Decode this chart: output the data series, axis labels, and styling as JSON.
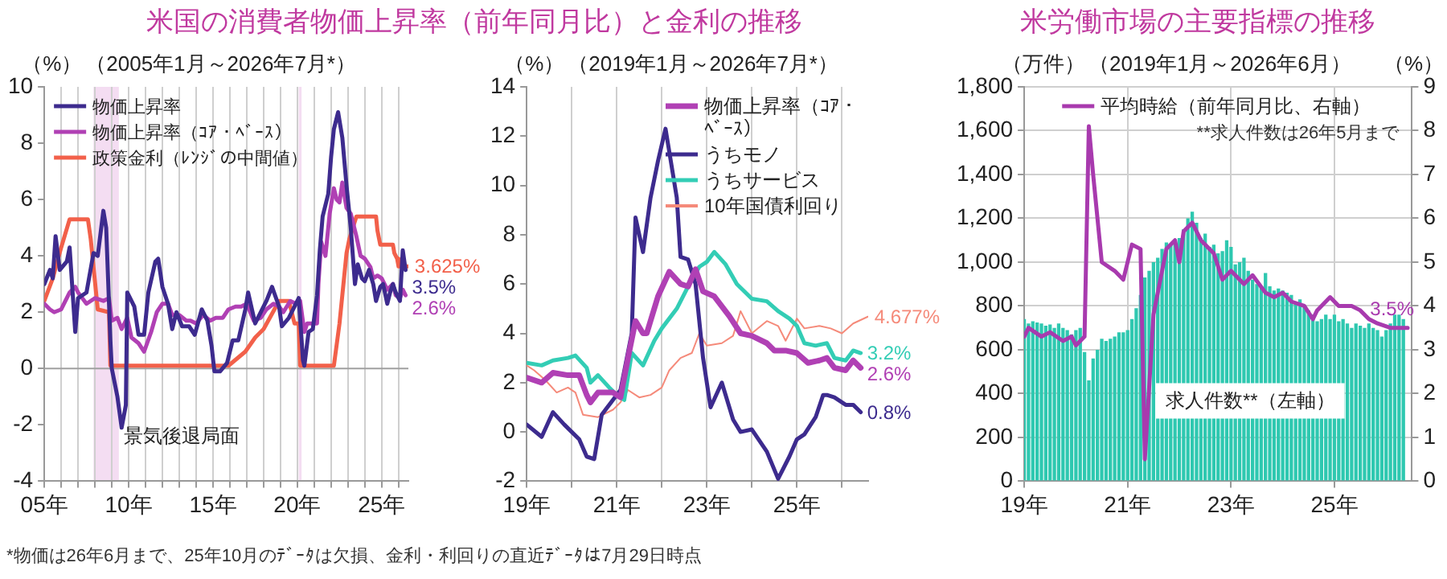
{
  "chart_data": [
    {
      "type": "line",
      "title": "米国の消費者物価上昇率（前年同月比）と金利の推移",
      "subtitle": "（2005年1月～2026年7月*）",
      "ylabel": "（%）",
      "xlim": [
        "2005-01",
        "2026-08"
      ],
      "xticks": [
        {
          "value": "2005",
          "label": "05年"
        },
        {
          "value": "2006",
          "label": null
        },
        {
          "value": "2007",
          "label": null
        },
        {
          "value": "2008",
          "label": null
        },
        {
          "value": "2009",
          "label": null
        },
        {
          "value": "2010",
          "label": "10年"
        },
        {
          "value": "2011",
          "label": null
        },
        {
          "value": "2012",
          "label": null
        },
        {
          "value": "2013",
          "label": null
        },
        {
          "value": "2014",
          "label": null
        },
        {
          "value": "2015",
          "label": "15年"
        },
        {
          "value": "2016",
          "label": null
        },
        {
          "value": "2017",
          "label": null
        },
        {
          "value": "2018",
          "label": null
        },
        {
          "value": "2019",
          "label": null
        },
        {
          "value": "2020",
          "label": "20年"
        },
        {
          "value": "2021",
          "label": null
        },
        {
          "value": "2022",
          "label": null
        },
        {
          "value": "2023",
          "label": null
        },
        {
          "value": "2024",
          "label": null
        },
        {
          "value": "2025",
          "label": "25年"
        },
        {
          "value": "2026",
          "label": null
        }
      ],
      "ylim": [
        -4,
        10
      ],
      "yticks": [
        -4,
        -2,
        0,
        2,
        4,
        6,
        8,
        10
      ],
      "grid": "x",
      "legend": "top left",
      "line_style": "solid",
      "marker": "none",
      "ref_lines": [
        {
          "axis": "y",
          "value": 0,
          "color": "#a0a0a0"
        }
      ],
      "bands": [
        {
          "axis": "x",
          "from": "2007-12",
          "to": "2009-06",
          "label": "景気後退局面",
          "color": "#f4ddf2"
        },
        {
          "axis": "x",
          "from": "2020-02",
          "to": "2020-04",
          "color": "#f4ddf2"
        }
      ],
      "series": [
        {
          "name": "物価上昇率",
          "color": "#3d2b8e",
          "x": [
            "2005-01",
            "2005-05",
            "2005-07",
            "2005-09",
            "2005-12",
            "2006-05",
            "2006-07",
            "2006-11",
            "2007-01",
            "2007-07",
            "2007-12",
            "2008-03",
            "2008-07",
            "2008-09",
            "2008-12",
            "2009-01",
            "2009-05",
            "2009-08",
            "2009-11",
            "2009-12",
            "2010-05",
            "2010-08",
            "2010-12",
            "2011-03",
            "2011-08",
            "2011-10",
            "2012-01",
            "2012-05",
            "2012-08",
            "2012-11",
            "2013-03",
            "2013-08",
            "2013-12",
            "2014-05",
            "2014-09",
            "2014-12",
            "2015-02",
            "2015-06",
            "2015-11",
            "2016-03",
            "2016-07",
            "2016-12",
            "2017-02",
            "2017-07",
            "2017-12",
            "2018-03",
            "2018-07",
            "2018-12",
            "2019-02",
            "2019-07",
            "2019-12",
            "2020-02",
            "2020-05",
            "2020-06",
            "2020-09",
            "2020-12",
            "2021-03",
            "2021-05",
            "2021-07",
            "2021-11",
            "2022-01",
            "2022-03",
            "2022-06",
            "2022-09",
            "2022-12",
            "2023-03",
            "2023-06",
            "2023-08",
            "2023-11",
            "2024-01",
            "2024-04",
            "2024-07",
            "2024-09",
            "2024-12",
            "2025-02",
            "2025-05",
            "2025-07",
            "2025-09",
            "2025-10",
            "2025-11",
            "2026-02",
            "2026-04",
            "2026-06"
          ],
          "values": [
            3.0,
            3.5,
            3.2,
            4.7,
            3.5,
            3.8,
            4.3,
            1.3,
            2.5,
            2.7,
            4.1,
            4.0,
            5.6,
            5.0,
            1.0,
            0.0,
            -1.0,
            -2.1,
            -1.3,
            2.7,
            2.2,
            1.2,
            1.2,
            2.7,
            3.8,
            3.9,
            2.9,
            2.3,
            1.4,
            2.0,
            1.5,
            1.5,
            1.2,
            2.1,
            1.7,
            0.8,
            -0.1,
            -0.1,
            0.2,
            1.0,
            1.0,
            2.1,
            2.7,
            1.6,
            2.1,
            2.4,
            2.9,
            2.2,
            1.5,
            1.8,
            2.3,
            2.5,
            0.3,
            0.1,
            1.3,
            1.4,
            2.6,
            4.2,
            5.4,
            6.2,
            7.5,
            8.5,
            9.1,
            8.2,
            6.5,
            5.0,
            3.0,
            3.7,
            3.2,
            3.1,
            3.5,
            3.0,
            2.4,
            2.9,
            3.0,
            2.3,
            2.7,
            3.0,
            null,
            2.7,
            2.4,
            4.2,
            3.5
          ]
        },
        {
          "name": "物価上昇率（ｺｱ・ﾍﾞｰｽ）",
          "color": "#b040b4",
          "x": [
            "2005-01",
            "2005-05",
            "2005-08",
            "2006-01",
            "2006-07",
            "2006-11",
            "2007-01",
            "2007-07",
            "2008-01",
            "2008-07",
            "2008-11",
            "2009-01",
            "2009-05",
            "2009-08",
            "2009-12",
            "2010-03",
            "2010-08",
            "2010-12",
            "2011-05",
            "2011-09",
            "2012-01",
            "2012-05",
            "2012-08",
            "2013-01",
            "2013-06",
            "2013-09",
            "2014-01",
            "2014-06",
            "2014-11",
            "2015-03",
            "2015-08",
            "2015-12",
            "2016-05",
            "2016-09",
            "2017-01",
            "2017-06",
            "2017-11",
            "2018-03",
            "2018-08",
            "2018-12",
            "2019-03",
            "2019-08",
            "2019-12",
            "2020-03",
            "2020-06",
            "2020-08",
            "2020-12",
            "2021-03",
            "2021-04",
            "2021-06",
            "2021-09",
            "2021-12",
            "2022-03",
            "2022-05",
            "2022-07",
            "2022-09",
            "2022-12",
            "2023-03",
            "2023-07",
            "2023-10",
            "2024-01",
            "2024-05",
            "2024-07",
            "2024-10",
            "2025-01",
            "2025-05",
            "2025-07",
            "2025-09",
            "2025-10",
            "2025-11",
            "2026-02",
            "2026-04",
            "2026-06"
          ],
          "values": [
            2.3,
            2.1,
            2.0,
            2.1,
            2.7,
            2.9,
            2.7,
            2.3,
            2.5,
            2.4,
            2.5,
            1.7,
            1.8,
            1.4,
            1.8,
            1.1,
            0.9,
            0.6,
            1.3,
            2.0,
            2.3,
            2.3,
            1.9,
            1.9,
            1.7,
            1.7,
            1.6,
            1.9,
            1.7,
            1.8,
            1.8,
            2.1,
            2.2,
            2.2,
            2.3,
            1.7,
            1.8,
            2.1,
            2.3,
            2.2,
            2.0,
            2.4,
            2.3,
            2.4,
            1.3,
            1.6,
            1.6,
            1.6,
            3.0,
            4.5,
            4.0,
            5.5,
            6.4,
            6.0,
            5.9,
            6.6,
            5.7,
            5.5,
            4.7,
            4.0,
            3.9,
            3.6,
            3.2,
            3.3,
            3.2,
            2.8,
            2.9,
            3.0,
            null,
            2.6,
            2.5,
            2.8,
            2.6
          ]
        },
        {
          "name": "政策金利（ﾚﾝｼﾞの中間値）",
          "color": "#f2604a",
          "x": [
            "2005-01",
            "2005-07",
            "2006-01",
            "2006-07",
            "2007-08",
            "2007-10",
            "2008-01",
            "2008-03",
            "2008-11",
            "2008-12",
            "2015-12",
            "2016-12",
            "2017-07",
            "2018-01",
            "2018-12",
            "2019-07",
            "2019-11",
            "2020-02",
            "2020-03",
            "2022-03",
            "2022-07",
            "2022-12",
            "2023-02",
            "2023-07",
            "2024-09",
            "2024-10",
            "2024-12",
            "2025-09",
            "2025-10",
            "2025-12",
            "2026-01",
            "2026-07-29"
          ],
          "values": [
            2.4,
            3.2,
            4.3,
            5.3,
            5.3,
            4.6,
            3.1,
            2.1,
            2.0,
            0.1,
            0.1,
            0.6,
            1.1,
            1.4,
            2.4,
            2.4,
            1.6,
            1.6,
            0.1,
            0.1,
            1.6,
            4.1,
            4.6,
            5.4,
            5.4,
            4.9,
            4.4,
            4.4,
            4.1,
            3.9,
            3.625,
            3.625
          ]
        }
      ],
      "annotations": [
        {
          "text": "3.625%",
          "x": "2026-07-29",
          "y": 3.625
        },
        {
          "text": "3.5%",
          "x": "2026-06",
          "y": 3.5
        },
        {
          "text": "2.6%",
          "x": "2026-06",
          "y": 2.6
        },
        "*物価は26年6月まで、25年10月のﾃﾞｰﾀは欠損、金利・利回りの直近ﾃﾞｰﾀは7月29日時点"
      ]
    },
    {
      "type": "line",
      "subtitle": "（2019年1月～2026年7月*）",
      "ylabel": "（%）",
      "xlim": [
        "2019-01",
        "2026-08"
      ],
      "xticks": [
        {
          "value": "2019",
          "label": "19年"
        },
        {
          "value": "2020",
          "label": null
        },
        {
          "value": "2021",
          "label": "21年"
        },
        {
          "value": "2022",
          "label": null
        },
        {
          "value": "2023",
          "label": "23年"
        },
        {
          "value": "2024",
          "label": null
        },
        {
          "value": "2025",
          "label": "25年"
        },
        {
          "value": "2026",
          "label": null
        }
      ],
      "ylim": [
        -2,
        14
      ],
      "yticks": [
        -2,
        0,
        2,
        4,
        6,
        8,
        10,
        12,
        14
      ],
      "grid": "x",
      "legend": "top right",
      "line_style": "solid",
      "marker": "none",
      "series": [
        {
          "name": "物価上昇率（ｺｱ・ﾍﾞｰｽ）",
          "color": "#b040b4",
          "x": [
            "2019-01",
            "2019-05",
            "2019-08",
            "2019-12",
            "2020-03",
            "2020-05",
            "2020-06",
            "2020-08",
            "2020-12",
            "2021-02",
            "2021-04",
            "2021-06",
            "2021-08",
            "2021-09",
            "2021-12",
            "2022-03",
            "2022-06",
            "2022-08",
            "2022-10",
            "2022-12",
            "2023-03",
            "2023-07",
            "2023-10",
            "2024-01",
            "2024-05",
            "2024-07",
            "2024-10",
            "2025-01",
            "2025-04",
            "2025-07",
            "2025-09",
            "2025-10",
            "2025-11",
            "2026-02",
            "2026-04",
            "2026-06"
          ],
          "values": [
            2.2,
            2.0,
            2.4,
            2.3,
            2.3,
            1.5,
            1.2,
            1.6,
            1.6,
            1.4,
            3.0,
            4.5,
            4.0,
            4.0,
            5.5,
            6.5,
            6.0,
            5.9,
            6.6,
            5.7,
            5.5,
            4.7,
            4.0,
            3.9,
            3.6,
            3.3,
            3.3,
            3.2,
            2.8,
            2.9,
            3.0,
            null,
            2.6,
            2.5,
            2.9,
            2.6
          ]
        },
        {
          "name": "うちモノ",
          "color": "#3d2b8e",
          "x": [
            "2019-01",
            "2019-05",
            "2019-08",
            "2019-11",
            "2020-01",
            "2020-03",
            "2020-05",
            "2020-07",
            "2020-09",
            "2020-12",
            "2021-02",
            "2021-05",
            "2021-06",
            "2021-08",
            "2021-10",
            "2021-12",
            "2022-02",
            "2022-05",
            "2022-06",
            "2022-08",
            "2022-10",
            "2022-12",
            "2023-02",
            "2023-05",
            "2023-08",
            "2023-10",
            "2024-01",
            "2024-05",
            "2024-08",
            "2024-11",
            "2025-01",
            "2025-03",
            "2025-06",
            "2025-08",
            "2025-09",
            "2025-10",
            "2025-11",
            "2026-02",
            "2026-04",
            "2026-06"
          ],
          "values": [
            0.3,
            -0.2,
            0.8,
            0.3,
            0.0,
            -0.3,
            -1.0,
            -1.1,
            0.7,
            1.3,
            1.7,
            4.0,
            8.7,
            7.3,
            9.5,
            11.0,
            12.3,
            9.5,
            7.1,
            7.0,
            6.0,
            3.0,
            1.0,
            2.0,
            0.5,
            0.0,
            0.1,
            -0.8,
            -1.9,
            -1.0,
            -0.3,
            -0.1,
            0.6,
            1.5,
            1.5,
            null,
            1.4,
            1.1,
            1.1,
            0.8
          ]
        },
        {
          "name": "うちサービス",
          "color": "#33cdb5",
          "x": [
            "2019-01",
            "2019-05",
            "2019-08",
            "2019-12",
            "2020-02",
            "2020-05",
            "2020-06",
            "2020-08",
            "2020-11",
            "2021-01",
            "2021-03",
            "2021-05",
            "2021-08",
            "2021-11",
            "2022-01",
            "2022-05",
            "2022-08",
            "2022-11",
            "2023-01",
            "2023-03",
            "2023-06",
            "2023-09",
            "2024-01",
            "2024-05",
            "2024-08",
            "2024-11",
            "2025-01",
            "2025-03",
            "2025-06",
            "2025-09",
            "2025-10",
            "2025-11",
            "2026-02",
            "2026-04",
            "2026-06"
          ],
          "values": [
            2.8,
            2.7,
            2.9,
            3.0,
            3.1,
            2.6,
            2.0,
            2.3,
            1.8,
            1.5,
            1.3,
            3.2,
            2.7,
            3.7,
            4.2,
            5.0,
            5.9,
            6.7,
            6.9,
            7.3,
            6.8,
            6.0,
            5.4,
            5.3,
            4.9,
            4.6,
            4.3,
            3.6,
            3.5,
            3.6,
            null,
            3.0,
            2.9,
            3.3,
            3.2
          ]
        },
        {
          "name": "10年国債利回り",
          "color": "#f58a7a",
          "x": [
            "2019-01",
            "2019-03",
            "2019-06",
            "2019-09",
            "2019-12",
            "2020-02",
            "2020-04",
            "2020-08",
            "2020-12",
            "2021-02",
            "2021-04",
            "2021-07",
            "2021-10",
            "2022-01",
            "2022-03",
            "2022-06",
            "2022-09",
            "2022-11",
            "2023-01",
            "2023-05",
            "2023-08",
            "2023-10",
            "2024-01",
            "2024-05",
            "2024-08",
            "2024-10",
            "2025-01",
            "2025-03",
            "2025-07",
            "2025-10",
            "2026-01",
            "2026-04",
            "2026-07-29"
          ],
          "values": [
            2.7,
            2.5,
            2.1,
            1.6,
            1.8,
            1.6,
            0.7,
            0.6,
            0.9,
            1.2,
            1.7,
            1.4,
            1.5,
            1.8,
            2.5,
            3.0,
            3.2,
            4.0,
            3.5,
            3.6,
            3.9,
            4.9,
            4.0,
            4.5,
            4.3,
            3.7,
            4.6,
            4.2,
            4.3,
            4.2,
            4.0,
            4.4,
            4.677
          ]
        }
      ],
      "annotations": [
        {
          "text": "4.677%",
          "x": "2026-07-29",
          "y": 4.677
        },
        {
          "text": "3.2%",
          "x": "2026-06",
          "y": 3.2
        },
        {
          "text": "2.6%",
          "x": "2026-06",
          "y": 2.6
        },
        {
          "text": "0.8%",
          "x": "2026-06",
          "y": 0.8
        }
      ]
    },
    {
      "type": "line",
      "title": "米労働市場の主要指標の推移",
      "subtitle": "（2019年1月～2026年6月）",
      "ylabel": "（万件）",
      "y2label": "（%）",
      "xlim": [
        "2019-01",
        "2026-07"
      ],
      "xticks": [
        {
          "value": "2019",
          "label": "19年"
        },
        {
          "value": "2021",
          "label": "21年"
        },
        {
          "value": "2023",
          "label": "23年"
        },
        {
          "value": "2025",
          "label": "25年"
        }
      ],
      "ylim": [
        0,
        1800
      ],
      "yticks": [
        0,
        200,
        400,
        600,
        800,
        {
          "value": 1000,
          "label": "1,000"
        },
        {
          "value": 1200,
          "label": "1,200"
        },
        {
          "value": 1400,
          "label": "1,400"
        },
        {
          "value": 1600,
          "label": "1,600"
        },
        {
          "value": 1800,
          "label": "1,800"
        }
      ],
      "y2lim": [
        0,
        9
      ],
      "y2ticks": [
        0,
        1,
        2,
        3,
        4,
        5,
        6,
        7,
        8,
        9
      ],
      "grid": true,
      "legend": "top",
      "line_style": "solid",
      "marker": "none",
      "series": [
        {
          "name": "求人件数**（左軸）",
          "type": "bar",
          "color": "#2ec8b0",
          "x": [
            "2019-01",
            "2019-02",
            "2019-03",
            "2019-04",
            "2019-05",
            "2019-06",
            "2019-07",
            "2019-08",
            "2019-09",
            "2019-10",
            "2019-11",
            "2019-12",
            "2020-01",
            "2020-02",
            "2020-03",
            "2020-04",
            "2020-05",
            "2020-06",
            "2020-07",
            "2020-08",
            "2020-09",
            "2020-10",
            "2020-11",
            "2020-12",
            "2021-01",
            "2021-02",
            "2021-03",
            "2021-04",
            "2021-05",
            "2021-06",
            "2021-07",
            "2021-08",
            "2021-09",
            "2021-10",
            "2021-11",
            "2021-12",
            "2022-01",
            "2022-02",
            "2022-03",
            "2022-04",
            "2022-05",
            "2022-06",
            "2022-07",
            "2022-08",
            "2022-09",
            "2022-10",
            "2022-11",
            "2022-12",
            "2023-01",
            "2023-02",
            "2023-03",
            "2023-04",
            "2023-05",
            "2023-06",
            "2023-07",
            "2023-08",
            "2023-09",
            "2023-10",
            "2023-11",
            "2023-12",
            "2024-01",
            "2024-02",
            "2024-03",
            "2024-04",
            "2024-05",
            "2024-06",
            "2024-07",
            "2024-08",
            "2024-09",
            "2024-10",
            "2024-11",
            "2024-12",
            "2025-01",
            "2025-02",
            "2025-03",
            "2025-04",
            "2025-05",
            "2025-06",
            "2025-07",
            "2025-08",
            "2025-09",
            "2025-10",
            "2025-11",
            "2025-12",
            "2026-01",
            "2026-02",
            "2026-03",
            "2026-04",
            "2026-05"
          ],
          "values": [
            740,
            720,
            730,
            725,
            720,
            710,
            715,
            700,
            720,
            700,
            690,
            670,
            690,
            700,
            590,
            460,
            560,
            600,
            650,
            640,
            650,
            660,
            680,
            680,
            690,
            740,
            790,
            850,
            930,
            960,
            1000,
            1020,
            1060,
            1090,
            1080,
            1090,
            1110,
            1150,
            1200,
            1230,
            1180,
            1110,
            1130,
            1070,
            1080,
            1040,
            1050,
            1100,
            1070,
            990,
            1000,
            1020,
            960,
            920,
            900,
            890,
            950,
            890,
            870,
            880,
            870,
            860,
            850,
            810,
            830,
            800,
            780,
            760,
            730,
            740,
            760,
            740,
            760,
            730,
            740,
            720,
            700,
            720,
            710,
            700,
            720,
            700,
            690,
            660,
            690,
            720,
            760,
            760,
            740
          ]
        },
        {
          "name": "平均時給（前年同月比、右軸）",
          "axis": "y2",
          "color": "#a83aae",
          "x": [
            "2019-01",
            "2019-02",
            "2019-05",
            "2019-07",
            "2019-10",
            "2019-12",
            "2020-01",
            "2020-03",
            "2020-04",
            "2020-05",
            "2020-07",
            "2020-10",
            "2020-12",
            "2021-02",
            "2021-04",
            "2021-05",
            "2021-07",
            "2021-08",
            "2021-10",
            "2021-12",
            "2022-01",
            "2022-02",
            "2022-04",
            "2022-06",
            "2022-09",
            "2022-11",
            "2023-01",
            "2023-04",
            "2023-06",
            "2023-09",
            "2023-11",
            "2024-01",
            "2024-03",
            "2024-06",
            "2024-08",
            "2024-09",
            "2024-12",
            "2025-02",
            "2025-05",
            "2025-07",
            "2025-09",
            "2025-10",
            "2025-11",
            "2026-02",
            "2026-04",
            "2026-06"
          ],
          "values": [
            3.3,
            3.5,
            3.3,
            3.4,
            3.2,
            3.3,
            3.1,
            3.3,
            8.1,
            7.0,
            5.0,
            4.8,
            4.6,
            5.4,
            5.3,
            0.5,
            3.8,
            4.3,
            5.3,
            5.5,
            5.0,
            5.7,
            5.9,
            5.5,
            5.2,
            4.6,
            4.8,
            4.5,
            4.7,
            4.3,
            4.2,
            4.3,
            4.1,
            4.0,
            3.7,
            3.9,
            4.2,
            4.0,
            4.0,
            3.9,
            3.7,
            null,
            3.6,
            3.5,
            3.5,
            3.5
          ]
        }
      ],
      "annotations": [
        "**求人件数は26年5月まで",
        {
          "text": "3.5%",
          "x": "2026-06",
          "y": 700
        }
      ]
    }
  ]
}
